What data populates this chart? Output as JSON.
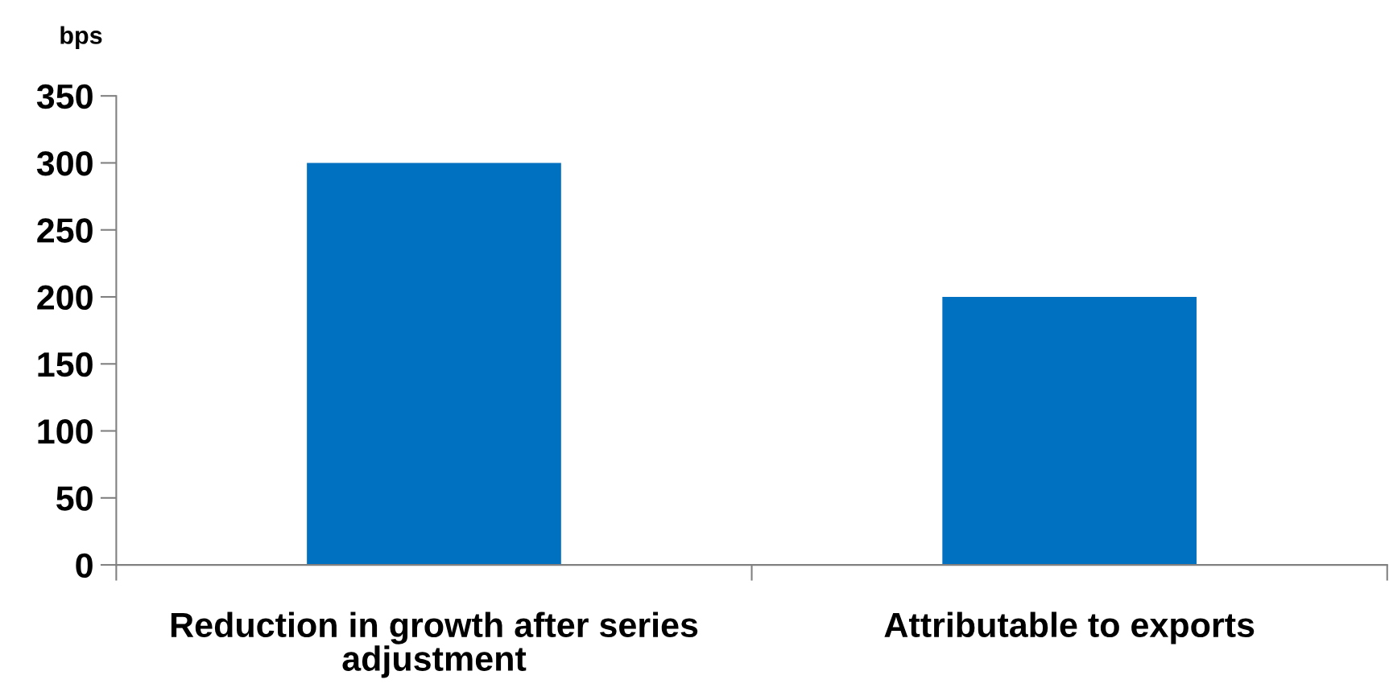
{
  "chart_data": {
    "type": "bar",
    "ylabel": "bps",
    "categories": [
      "Reduction in growth after series adjustment",
      "Attributable to exports"
    ],
    "values": [
      300,
      200
    ],
    "color": "#0070c0",
    "ylim": [
      0,
      350
    ],
    "yticks": [
      0,
      50,
      100,
      150,
      200,
      250,
      300,
      350
    ],
    "grid": false
  }
}
